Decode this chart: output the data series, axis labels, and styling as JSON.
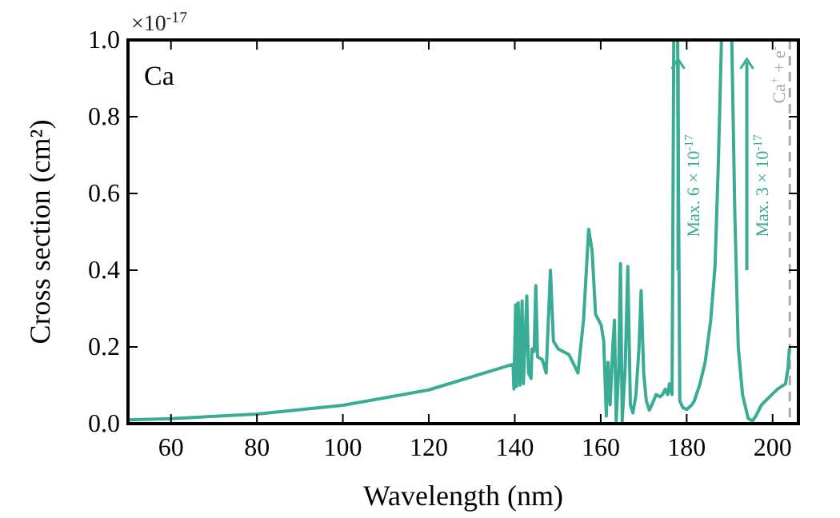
{
  "chart_data": {
    "type": "line",
    "xlabel": "Wavelength (nm)",
    "ylabel": "Cross section (cm²)",
    "xlim": [
      50,
      206
    ],
    "xticks": [
      60,
      80,
      100,
      120,
      140,
      160,
      180,
      200
    ],
    "ylim": [
      0,
      1
    ],
    "yticks": [
      {
        "value": 0,
        "label": "0.0"
      },
      {
        "value": 0.2,
        "label": "0.2"
      },
      {
        "value": 0.4,
        "label": "0.4"
      },
      {
        "value": 0.6,
        "label": "0.6"
      },
      {
        "value": 0.8,
        "label": "0.8"
      },
      {
        "value": 1,
        "label": "1.0"
      }
    ],
    "grid": false,
    "marker": "none",
    "line_style": "solid",
    "series": [
      {
        "color": "#3aab94",
        "x": [
          50,
          60,
          80,
          100,
          120,
          139.6,
          139.8,
          140.2,
          140.4,
          140.8,
          141.2,
          141.7,
          142.0,
          142.8,
          143.2,
          143.8,
          144.0,
          144.5,
          144.9,
          145.3,
          146.4,
          147.3,
          148.3,
          149.0,
          150.1,
          152.6,
          153.5,
          154.7,
          156.0,
          157.2,
          158.0,
          158.8,
          160.1,
          160.7,
          161.3,
          161.7,
          162.2,
          162.8,
          163.2,
          163.6,
          164.2,
          164.6,
          165.0,
          165.7,
          166.3,
          166.9,
          167.5,
          168.2,
          168.9,
          169.4,
          170.0,
          170.6,
          171.3,
          171.9,
          172.9,
          173.8,
          174.4,
          175.0,
          175.6,
          176.0,
          176.6,
          177.0,
          177.9,
          178.4,
          179.1,
          180.0,
          181.2,
          181.8,
          183.1,
          184.3,
          185.6,
          186.6,
          187.4,
          188.1,
          190.5,
          191.2,
          192.0,
          193.0,
          194.3,
          195.3,
          196.1,
          197.4,
          199.3,
          201.1,
          203.0,
          203.6,
          203.9
        ],
        "values": [
          0.01,
          0.013,
          0.025,
          0.048,
          0.088,
          0.155,
          0.09,
          0.31,
          0.097,
          0.315,
          0.1,
          0.32,
          0.104,
          0.333,
          0.132,
          0.118,
          0.195,
          0.188,
          0.36,
          0.174,
          0.167,
          0.132,
          0.4,
          0.215,
          0.195,
          0.18,
          0.16,
          0.132,
          0.27,
          0.507,
          0.45,
          0.285,
          0.257,
          0.215,
          0.02,
          0.16,
          0.049,
          0.2,
          0.27,
          0.007,
          0.146,
          0.417,
          0.007,
          0.146,
          0.41,
          0.049,
          0.028,
          0.076,
          0.195,
          0.347,
          0.132,
          0.06,
          0.035,
          0.049,
          0.076,
          0.07,
          0.076,
          0.09,
          0.076,
          0.104,
          0.076,
          1,
          1,
          0.06,
          0.042,
          0.037,
          0.049,
          0.06,
          0.104,
          0.16,
          0.27,
          0.41,
          0.69,
          1,
          1,
          0.55,
          0.2,
          0.076,
          0.014,
          0.007,
          0.02,
          0.049,
          0.07,
          0.09,
          0.104,
          0.146,
          0.195
        ]
      }
    ],
    "ref_lines": [
      {
        "axis": "x",
        "value": 204,
        "label": "Ca$^{+}$ + e$^{-}$",
        "color": "#aaaaaa",
        "line_style": "dashed"
      }
    ],
    "annotations": [
      "Ca",
      "×10$^{-17}$",
      "Max. 6 × 10$^{-17}$",
      "Max. 3 × 10$^{-17}$"
    ]
  }
}
